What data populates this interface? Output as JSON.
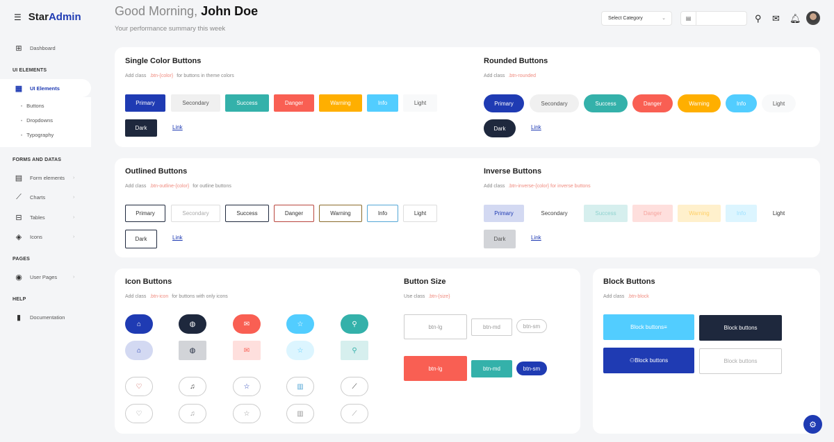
{
  "brand": {
    "part1": "Star",
    "part2": "Admin"
  },
  "header": {
    "greeting": "Good Morning, ",
    "user": "John Doe",
    "subtitle": "Your performance summary this week",
    "category": "Select Category",
    "date_value": ""
  },
  "sidebar": {
    "dashboard": "Dashboard",
    "sections": [
      "UI ELEMENTS",
      "FORMS AND DATAS",
      "PAGES",
      "HELP"
    ],
    "ui_elements": "UI Elements",
    "sub_items": [
      "Buttons",
      "Dropdowns",
      "Typography"
    ],
    "forms": [
      "Form elements",
      "Charts",
      "Tables",
      "Icons"
    ],
    "user_pages": "User Pages",
    "documentation": "Documentation"
  },
  "colors": {
    "primary": "#1f3bb3",
    "secondary": "#f0f0f0",
    "success": "#34b1aa",
    "danger": "#f95f53",
    "warning": "#ffaf00",
    "info": "#52cdff",
    "light": "#f8f9fa",
    "dark": "#1e283d"
  },
  "cards": {
    "single": {
      "title": "Single Color Buttons",
      "desc": "Add class",
      "code": ".btn-{color}",
      "desc2": "for buttons in theme colors"
    },
    "rounded": {
      "title": "Rounded Buttons",
      "desc": "Add class",
      "code": ".btn-rounded",
      "desc2": ""
    },
    "outlined": {
      "title": "Outlined Buttons",
      "desc": "Add class",
      "code": ".btn-outline-{color}",
      "desc2": "for outline buttons"
    },
    "inverse": {
      "title": "Inverse Buttons",
      "desc": "Add class",
      "code": ".btn-inverse-{color} for inverse buttons",
      "desc2": ""
    },
    "icon": {
      "title": "Icon Buttons",
      "desc": "Add class",
      "code": ".btn-icon",
      "desc2": "for buttons with only icons"
    },
    "size": {
      "title": "Button Size",
      "desc": "Use class",
      "code": ".btn-{size}",
      "desc2": ""
    },
    "block": {
      "title": "Block Buttons",
      "desc": "Add class",
      "code": ".btn-block",
      "desc2": ""
    }
  },
  "theme_buttons": [
    "Primary",
    "Secondary",
    "Success",
    "Danger",
    "Warning",
    "Info",
    "Light",
    "Dark"
  ],
  "link_label": "Link",
  "size_buttons": [
    "btn-lg",
    "btn-md",
    "btn-sm"
  ],
  "block_buttons": [
    "Block buttons",
    "Block buttons",
    "Block buttons",
    "Block buttons"
  ],
  "icon_rows": [
    [
      "home-icon",
      "globe-icon",
      "mail-icon",
      "star-icon",
      "map-pin-icon"
    ],
    [
      "heart-icon",
      "music-icon",
      "star-icon",
      "bar-chart-icon",
      "trending-up-icon"
    ]
  ]
}
